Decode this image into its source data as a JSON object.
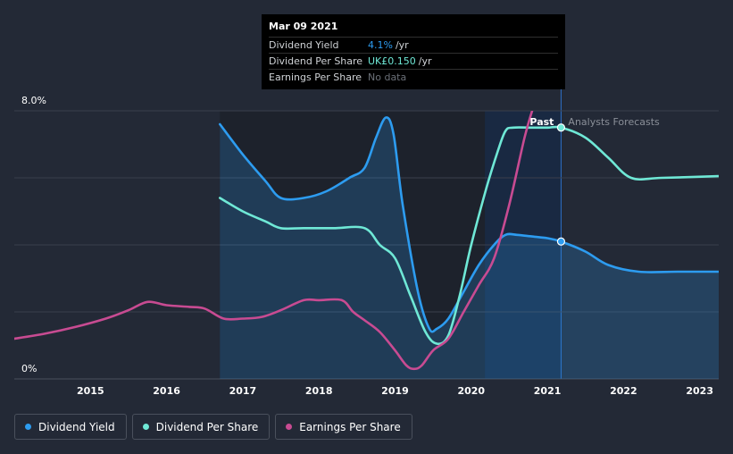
{
  "chart_data": {
    "type": "line",
    "y_axis": {
      "ticks": [
        "8.0%",
        "0%"
      ],
      "ylim": [
        0,
        8.0
      ]
    },
    "x_axis": {
      "ticks": [
        "2015",
        "2016",
        "2017",
        "2018",
        "2019",
        "2020",
        "2021",
        "2022",
        "2023"
      ],
      "xlim": [
        2014.0,
        2023.25
      ]
    },
    "past_label": "Past",
    "forecast_label": "Analysts Forecasts",
    "series": [
      {
        "name": "Dividend Yield",
        "color": "#2d9cf0",
        "filled": true,
        "x": [
          2016.7,
          2017.0,
          2017.3,
          2017.5,
          2017.8,
          2018.1,
          2018.4,
          2018.6,
          2018.75,
          2018.88,
          2018.98,
          2019.1,
          2019.3,
          2019.45,
          2019.55,
          2019.7,
          2019.9,
          2020.1,
          2020.3,
          2020.45,
          2020.6,
          2020.8,
          2021.0,
          2021.18,
          2021.5,
          2021.8,
          2022.2,
          2022.7,
          2023.25
        ],
        "y": [
          7.6,
          6.7,
          5.9,
          5.4,
          5.4,
          5.6,
          6.0,
          6.3,
          7.2,
          7.8,
          7.3,
          5.2,
          2.6,
          1.5,
          1.5,
          1.8,
          2.6,
          3.4,
          4.0,
          4.3,
          4.3,
          4.25,
          4.2,
          4.1,
          3.8,
          3.4,
          3.2,
          3.2,
          3.2
        ]
      },
      {
        "name": "Dividend Per Share",
        "color": "#6fe8d6",
        "filled": false,
        "x": [
          2016.7,
          2017.0,
          2017.3,
          2017.5,
          2017.8,
          2018.2,
          2018.6,
          2018.8,
          2019.0,
          2019.2,
          2019.4,
          2019.55,
          2019.7,
          2019.85,
          2020.0,
          2020.2,
          2020.35,
          2020.45,
          2020.55,
          2020.8,
          2021.0,
          2021.18,
          2021.5,
          2021.8,
          2022.1,
          2022.5,
          2023.25
        ],
        "y": [
          5.4,
          5.0,
          4.7,
          4.5,
          4.5,
          4.5,
          4.5,
          4.0,
          3.6,
          2.5,
          1.4,
          1.05,
          1.3,
          2.5,
          4.0,
          5.7,
          6.8,
          7.4,
          7.5,
          7.5,
          7.5,
          7.5,
          7.2,
          6.6,
          6.0,
          6.0,
          6.05
        ]
      },
      {
        "name": "Earnings Per Share",
        "color": "#c84b92",
        "filled": false,
        "x": [
          2014.0,
          2014.4,
          2014.8,
          2015.2,
          2015.5,
          2015.75,
          2016.0,
          2016.3,
          2016.5,
          2016.75,
          2017.0,
          2017.25,
          2017.5,
          2017.8,
          2018.0,
          2018.3,
          2018.45,
          2018.6,
          2018.8,
          2019.0,
          2019.15,
          2019.25,
          2019.35,
          2019.5,
          2019.7,
          2019.9,
          2020.1,
          2020.3,
          2020.5,
          2020.7,
          2020.8
        ],
        "y": [
          1.2,
          1.35,
          1.55,
          1.8,
          2.05,
          2.3,
          2.2,
          2.15,
          2.1,
          1.8,
          1.8,
          1.85,
          2.05,
          2.35,
          2.35,
          2.35,
          2.0,
          1.75,
          1.4,
          0.85,
          0.4,
          0.3,
          0.4,
          0.85,
          1.2,
          2.0,
          2.8,
          3.6,
          5.2,
          7.2,
          8.0
        ]
      }
    ],
    "highlight": {
      "date": "Mar 09 2021",
      "x": 2021.18
    }
  },
  "tooltip": {
    "date": "Mar 09 2021",
    "rows": [
      {
        "key": "Dividend Yield",
        "value": "4.1%",
        "unit": "/yr",
        "style": "blue"
      },
      {
        "key": "Dividend Per Share",
        "value": "UK£0.150",
        "unit": "/yr",
        "style": "teal"
      },
      {
        "key": "Earnings Per Share",
        "value": "No data",
        "unit": "",
        "style": "gray"
      }
    ]
  },
  "legend": [
    {
      "label": "Dividend Yield",
      "color": "#2d9cf0"
    },
    {
      "label": "Dividend Per Share",
      "color": "#6fe8d6"
    },
    {
      "label": "Earnings Per Share",
      "color": "#c84b92"
    }
  ]
}
